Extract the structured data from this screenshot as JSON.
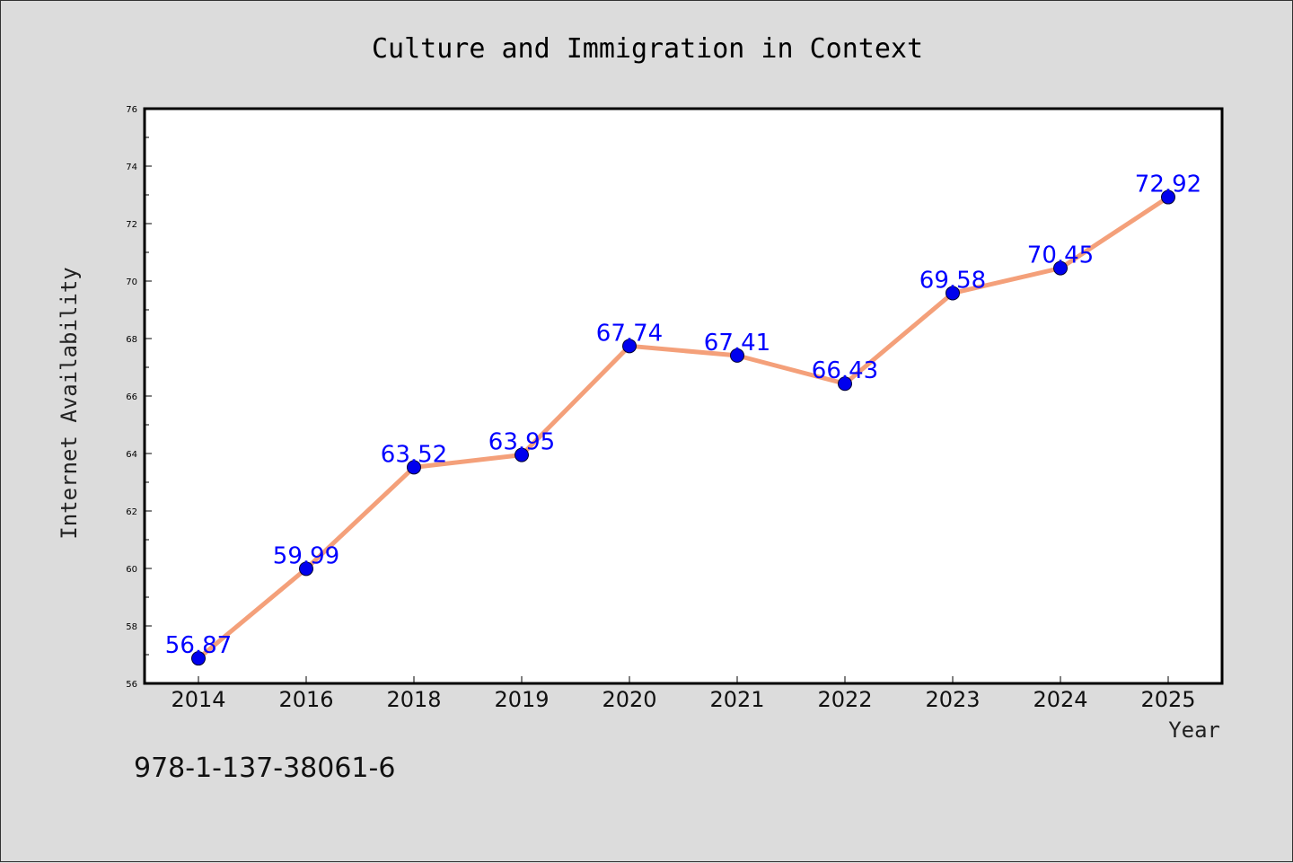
{
  "chart_data": {
    "type": "line",
    "title": "Culture and Immigration in Context",
    "xlabel": "Year",
    "ylabel": "Internet Availability",
    "categories": [
      "2014",
      "2016",
      "2018",
      "2019",
      "2020",
      "2021",
      "2022",
      "2023",
      "2024",
      "2025"
    ],
    "series": [
      {
        "values": [
          56.87,
          59.99,
          63.52,
          63.95,
          67.74,
          67.41,
          66.43,
          69.58,
          70.45,
          72.92
        ]
      }
    ],
    "data_labels": [
      "56.87",
      "59.99",
      "63.52",
      "63.95",
      "67.74",
      "67.41",
      "66.43",
      "69.58",
      "70.45",
      "72.92"
    ],
    "ylim": [
      56,
      76
    ],
    "yticks": [
      "56",
      "58",
      "60",
      "62",
      "64",
      "66",
      "68",
      "70",
      "72",
      "74",
      "76"
    ],
    "grid": false,
    "colors": {
      "line": "#f4a07a",
      "marker": "#0000ee",
      "data_label": "#0000ff",
      "plot_background": "#ffffff",
      "figure_background": "#dcdcdc"
    }
  },
  "footer": {
    "isbn": "978-1-137-38061-6"
  }
}
